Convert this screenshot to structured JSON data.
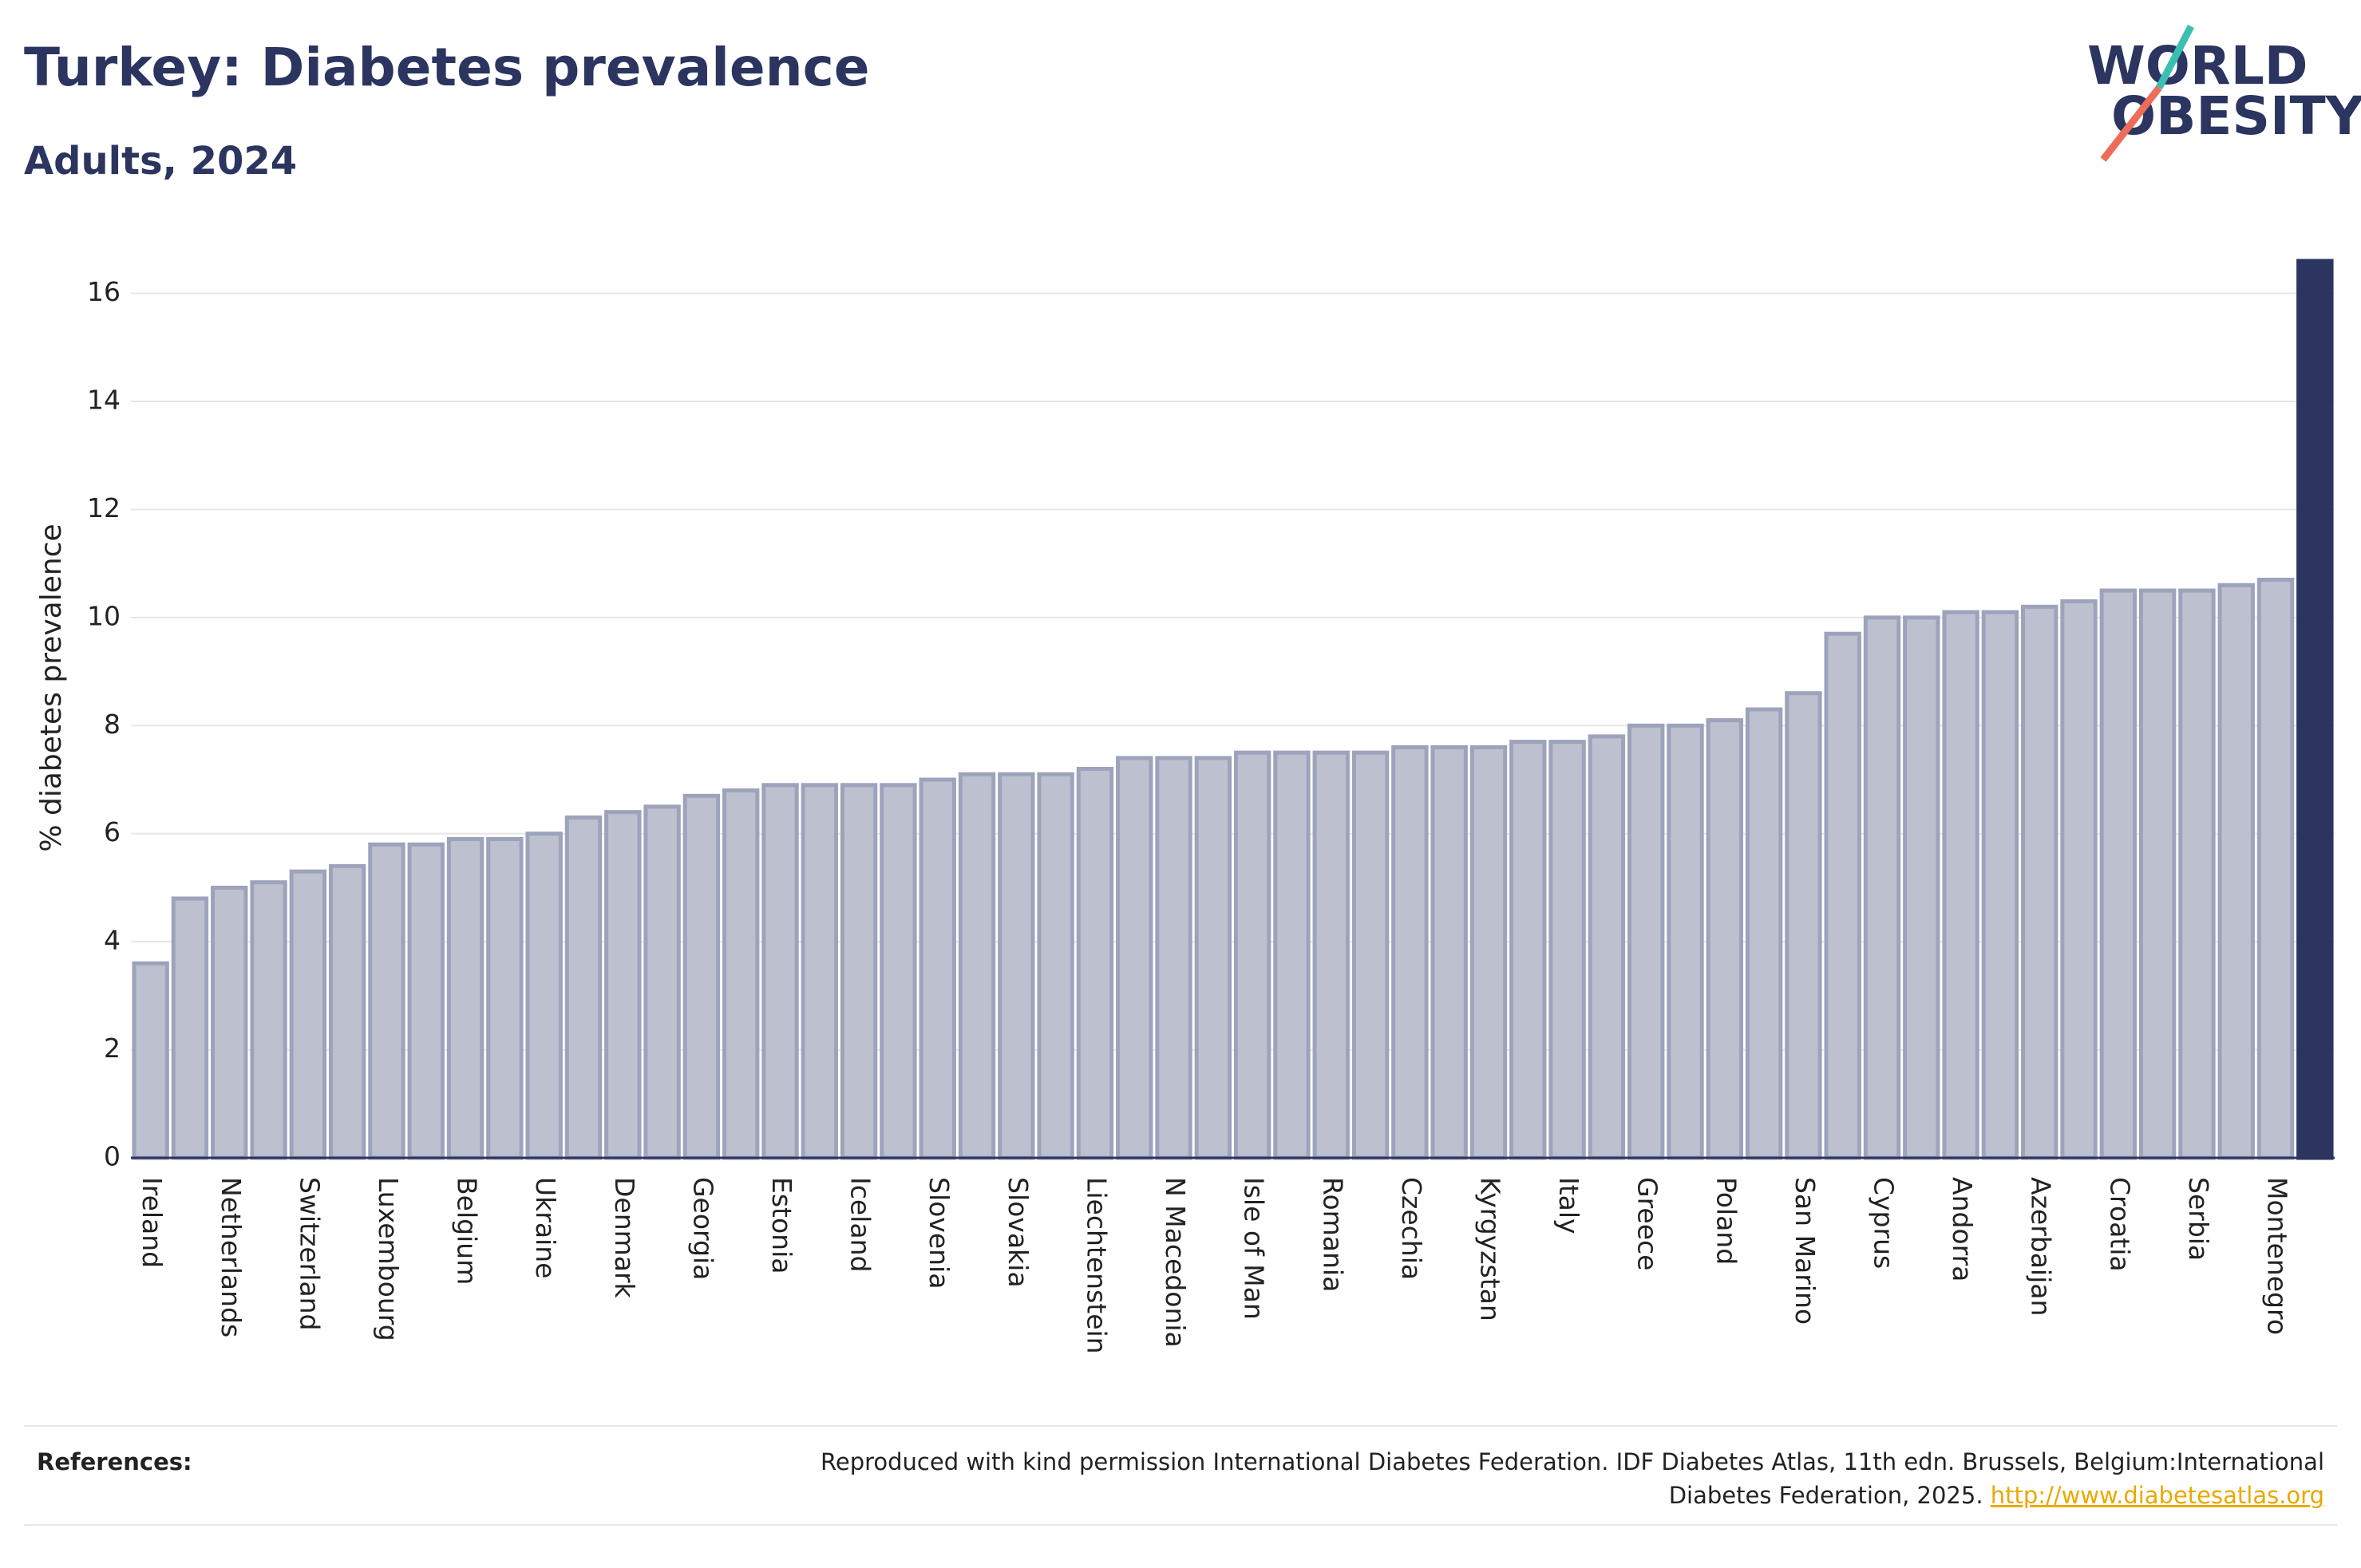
{
  "chart_data": {
    "type": "bar",
    "title": "Turkey: Diabetes prevalence",
    "subtitle": "Adults, 2024",
    "y_label": "% diabetes prevalence",
    "categories": [
      "Ireland",
      null,
      "Netherlands",
      null,
      "Switzerland",
      null,
      "Luxembourg",
      null,
      "Belgium",
      null,
      "Ukraine",
      null,
      "Denmark",
      null,
      "Georgia",
      null,
      "Estonia",
      null,
      "Iceland",
      null,
      "Slovenia",
      null,
      "Slovakia",
      null,
      "Liechtenstein",
      null,
      "N Macedonia",
      null,
      "Isle of Man",
      null,
      "Romania",
      null,
      "Czechia",
      null,
      "Kyrgyzstan",
      null,
      "Italy",
      null,
      "Greece",
      null,
      "Poland",
      null,
      "San Marino",
      null,
      "Cyprus",
      null,
      "Andorra",
      null,
      "Azerbaijan",
      null,
      "Croatia",
      null,
      "Serbia",
      null,
      "Montenegro",
      null
    ],
    "values": [
      3.6,
      4.8,
      5.0,
      5.1,
      5.3,
      5.4,
      5.8,
      5.8,
      5.9,
      5.9,
      6.0,
      6.3,
      6.4,
      6.5,
      6.7,
      6.8,
      6.9,
      6.9,
      6.9,
      6.9,
      7.0,
      7.1,
      7.1,
      7.1,
      7.2,
      7.4,
      7.4,
      7.4,
      7.5,
      7.5,
      7.5,
      7.5,
      7.6,
      7.6,
      7.6,
      7.7,
      7.7,
      7.8,
      8.0,
      8.0,
      8.1,
      8.3,
      8.6,
      9.7,
      10.0,
      10.0,
      10.1,
      10.1,
      10.2,
      10.3,
      10.5,
      10.5,
      10.5,
      10.6,
      10.7,
      16.6
    ],
    "color": "#bcc0cf",
    "edge_color": "#9ea3bc",
    "highlight_index": 55,
    "highlight_color": "#2b3560",
    "ylim": [
      0,
      16.6
    ],
    "yticks": [
      0,
      2,
      4,
      6,
      8,
      10,
      12,
      14,
      16
    ],
    "grid": true
  },
  "logo": {
    "line1": "WORLD",
    "line2": "OBESITY"
  },
  "references": {
    "label": "References:",
    "line1": "Reproduced with kind permission International Diabetes Federation. IDF Diabetes Atlas, 11th edn. Brussels, Belgium:International",
    "line2": "Diabetes Federation, 2025.",
    "link": "http://www.diabetesatlas.org"
  }
}
